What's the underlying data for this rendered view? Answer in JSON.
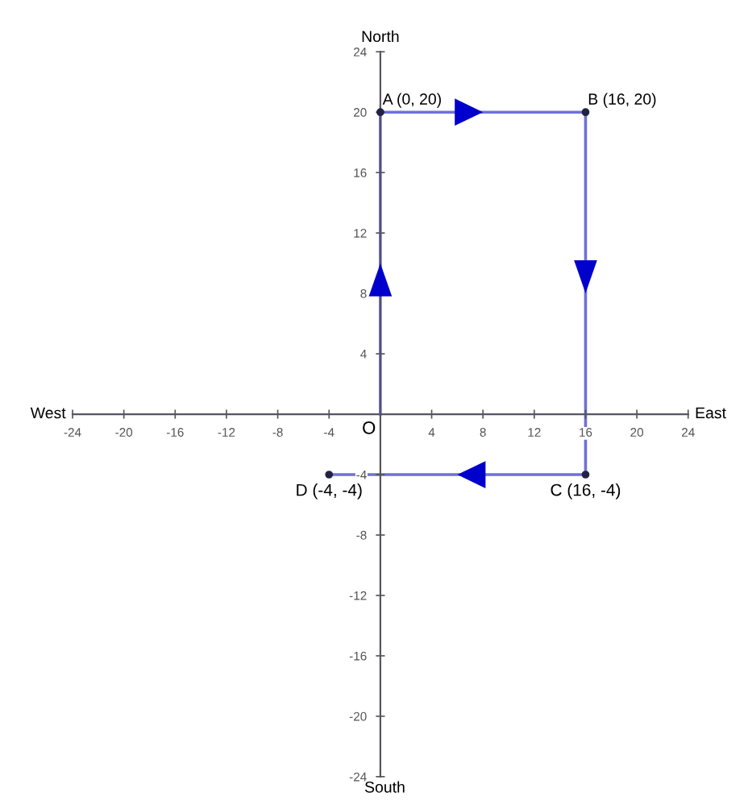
{
  "chart_data": {
    "type": "line",
    "x": [
      0,
      0,
      16,
      16,
      -4
    ],
    "values": [
      0,
      20,
      20,
      -4,
      -4
    ],
    "color": "#7070d8",
    "marker": "circle",
    "line_style": "solid",
    "grid": false,
    "xlim": [
      -24,
      24
    ],
    "ylim": [
      -24,
      24
    ],
    "xticks": [
      -24,
      -20,
      -16,
      -12,
      -8,
      -4,
      {
        "value": 0,
        "label": null
      },
      4,
      8,
      12,
      16,
      20,
      24
    ],
    "yticks": [
      -24,
      -20,
      -16,
      -12,
      -8,
      -4,
      {
        "value": 0,
        "label": null
      },
      4,
      8,
      12,
      16,
      20,
      24
    ],
    "annotations": [
      {
        "text": "O",
        "x": 0,
        "y": 0
      },
      {
        "text": "A (0, 20)",
        "x": 0,
        "y": 20
      },
      {
        "text": "B (16, 20)",
        "x": 16,
        "y": 20
      },
      {
        "text": "C (16, -4)",
        "x": 16,
        "y": -4
      },
      {
        "text": "D (-4, -4)",
        "x": -4,
        "y": -4
      },
      "North",
      "South",
      "West",
      "East"
    ]
  }
}
